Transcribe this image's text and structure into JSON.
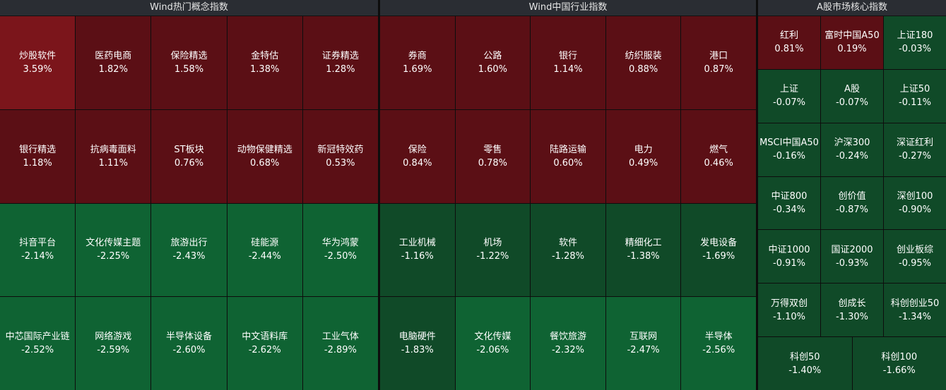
{
  "panels": {
    "concept": {
      "title": "Wind热门概念指数",
      "tiles": [
        {
          "name": "炒股软件",
          "pct": "3.59%",
          "color": "#7b151b"
        },
        {
          "name": "医药电商",
          "pct": "1.82%",
          "color": "#5b0f15"
        },
        {
          "name": "保险精选",
          "pct": "1.58%",
          "color": "#5b0f15"
        },
        {
          "name": "金特估",
          "pct": "1.38%",
          "color": "#5b0f15"
        },
        {
          "name": "证券精选",
          "pct": "1.28%",
          "color": "#5b0f15"
        },
        {
          "name": "银行精选",
          "pct": "1.18%",
          "color": "#5b0f15"
        },
        {
          "name": "抗病毒面料",
          "pct": "1.11%",
          "color": "#5b0f15"
        },
        {
          "name": "ST板块",
          "pct": "0.76%",
          "color": "#5b0f15"
        },
        {
          "name": "动物保健精选",
          "pct": "0.68%",
          "color": "#5b0f15"
        },
        {
          "name": "新冠特效药",
          "pct": "0.53%",
          "color": "#5b0f15"
        },
        {
          "name": "抖音平台",
          "pct": "-2.14%",
          "color": "#0f6333"
        },
        {
          "name": "文化传媒主题",
          "pct": "-2.25%",
          "color": "#0f6333"
        },
        {
          "name": "旅游出行",
          "pct": "-2.43%",
          "color": "#0f6333"
        },
        {
          "name": "硅能源",
          "pct": "-2.44%",
          "color": "#0f6333"
        },
        {
          "name": "华为鸿蒙",
          "pct": "-2.50%",
          "color": "#0f6333"
        },
        {
          "name": "中芯国际产业链",
          "pct": "-2.52%",
          "color": "#0f6333"
        },
        {
          "name": "网络游戏",
          "pct": "-2.59%",
          "color": "#0f6333"
        },
        {
          "name": "半导体设备",
          "pct": "-2.60%",
          "color": "#0f6333"
        },
        {
          "name": "中文语料库",
          "pct": "-2.62%",
          "color": "#0f6333"
        },
        {
          "name": "工业气体",
          "pct": "-2.89%",
          "color": "#0f6333"
        }
      ]
    },
    "industry": {
      "title": "Wind中国行业指数",
      "tiles": [
        {
          "name": "券商",
          "pct": "1.69%",
          "color": "#5b0f15"
        },
        {
          "name": "公路",
          "pct": "1.60%",
          "color": "#5b0f15"
        },
        {
          "name": "银行",
          "pct": "1.14%",
          "color": "#5b0f15"
        },
        {
          "name": "纺织服装",
          "pct": "0.88%",
          "color": "#5b0f15"
        },
        {
          "name": "港口",
          "pct": "0.87%",
          "color": "#5b0f15"
        },
        {
          "name": "保险",
          "pct": "0.84%",
          "color": "#5b0f15"
        },
        {
          "name": "零售",
          "pct": "0.78%",
          "color": "#5b0f15"
        },
        {
          "name": "陆路运输",
          "pct": "0.60%",
          "color": "#5b0f15"
        },
        {
          "name": "电力",
          "pct": "0.49%",
          "color": "#5b0f15"
        },
        {
          "name": "燃气",
          "pct": "0.46%",
          "color": "#5b0f15"
        },
        {
          "name": "工业机械",
          "pct": "-1.16%",
          "color": "#104a28"
        },
        {
          "name": "机场",
          "pct": "-1.22%",
          "color": "#104a28"
        },
        {
          "name": "软件",
          "pct": "-1.28%",
          "color": "#104a28"
        },
        {
          "name": "精细化工",
          "pct": "-1.38%",
          "color": "#104a28"
        },
        {
          "name": "发电设备",
          "pct": "-1.69%",
          "color": "#104a28"
        },
        {
          "name": "电脑硬件",
          "pct": "-1.83%",
          "color": "#104a28"
        },
        {
          "name": "文化传媒",
          "pct": "-2.06%",
          "color": "#0f6333"
        },
        {
          "name": "餐饮旅游",
          "pct": "-2.32%",
          "color": "#0f6333"
        },
        {
          "name": "互联网",
          "pct": "-2.47%",
          "color": "#0f6333"
        },
        {
          "name": "半导体",
          "pct": "-2.56%",
          "color": "#0f6333"
        }
      ]
    },
    "ashare": {
      "title": "A股市场核心指数",
      "tiles": [
        {
          "name": "红利",
          "pct": "0.81%",
          "color": "#5b0f15"
        },
        {
          "name": "富时中国A50",
          "pct": "0.19%",
          "color": "#5b0f15"
        },
        {
          "name": "上证180",
          "pct": "-0.03%",
          "color": "#104a28"
        },
        {
          "name": "上证",
          "pct": "-0.07%",
          "color": "#104a28"
        },
        {
          "name": "A股",
          "pct": "-0.07%",
          "color": "#104a28"
        },
        {
          "name": "上证50",
          "pct": "-0.11%",
          "color": "#104a28"
        },
        {
          "name": "MSCI中国A50",
          "pct": "-0.16%",
          "color": "#104a28"
        },
        {
          "name": "沪深300",
          "pct": "-0.24%",
          "color": "#104a28"
        },
        {
          "name": "深证红利",
          "pct": "-0.27%",
          "color": "#104a28"
        },
        {
          "name": "中证800",
          "pct": "-0.34%",
          "color": "#104a28"
        },
        {
          "name": "创价值",
          "pct": "-0.87%",
          "color": "#104a28"
        },
        {
          "name": "深创100",
          "pct": "-0.90%",
          "color": "#104a28"
        },
        {
          "name": "中证1000",
          "pct": "-0.91%",
          "color": "#104a28"
        },
        {
          "name": "国证2000",
          "pct": "-0.93%",
          "color": "#104a28"
        },
        {
          "name": "创业板综",
          "pct": "-0.95%",
          "color": "#104a28"
        },
        {
          "name": "万得双创",
          "pct": "-1.10%",
          "color": "#104a28"
        },
        {
          "name": "创成长",
          "pct": "-1.30%",
          "color": "#104a28"
        },
        {
          "name": "科创创业50",
          "pct": "-1.34%",
          "color": "#104a28"
        }
      ],
      "last_row": [
        {
          "name": "科创50",
          "pct": "-1.40%",
          "color": "#104a28"
        },
        {
          "name": "科创100",
          "pct": "-1.66%",
          "color": "#104a28"
        }
      ]
    }
  }
}
